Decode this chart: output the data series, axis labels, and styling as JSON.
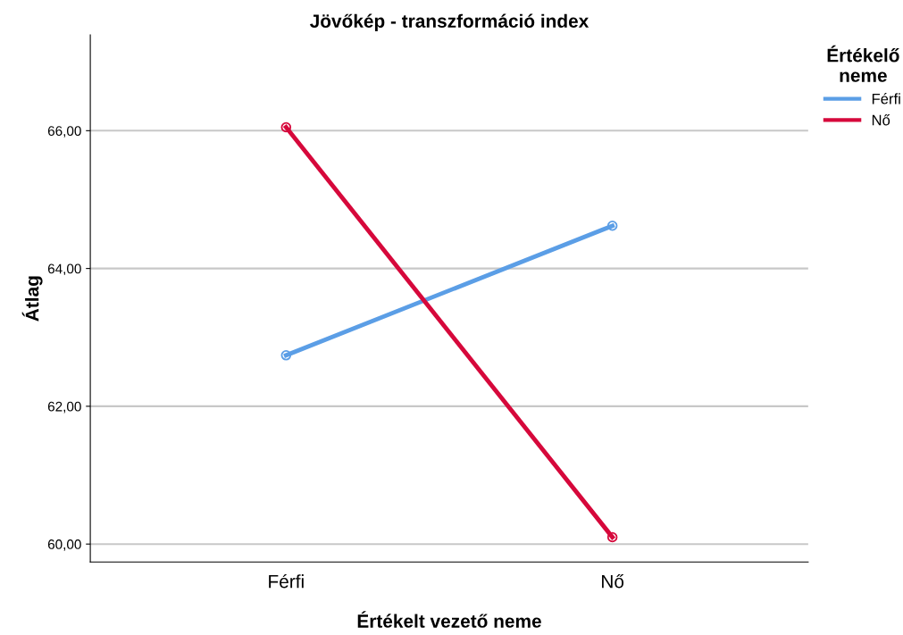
{
  "chart_data": {
    "type": "line",
    "title": "Jövőkép - transzformáció index",
    "xlabel": "Értékelt vezető neme",
    "ylabel": "Átlag",
    "legend_title": "Értékelő\nneme",
    "categories": [
      "Férfi",
      "Nő"
    ],
    "series": [
      {
        "name": "Férfi",
        "color": "#5b9ee6",
        "values": [
          62.74,
          64.62
        ]
      },
      {
        "name": "Nő",
        "color": "#d6083b",
        "values": [
          66.05,
          60.1
        ]
      }
    ],
    "ylim": [
      59.74,
      67.39
    ],
    "yticks": [
      {
        "value": 60,
        "label": "60,00"
      },
      {
        "value": 62,
        "label": "62,00"
      },
      {
        "value": 64,
        "label": "64,00"
      },
      {
        "value": 66,
        "label": "66,00"
      }
    ],
    "grid": "y",
    "legend": "top right",
    "marker": "circle",
    "line_style": "solid"
  }
}
